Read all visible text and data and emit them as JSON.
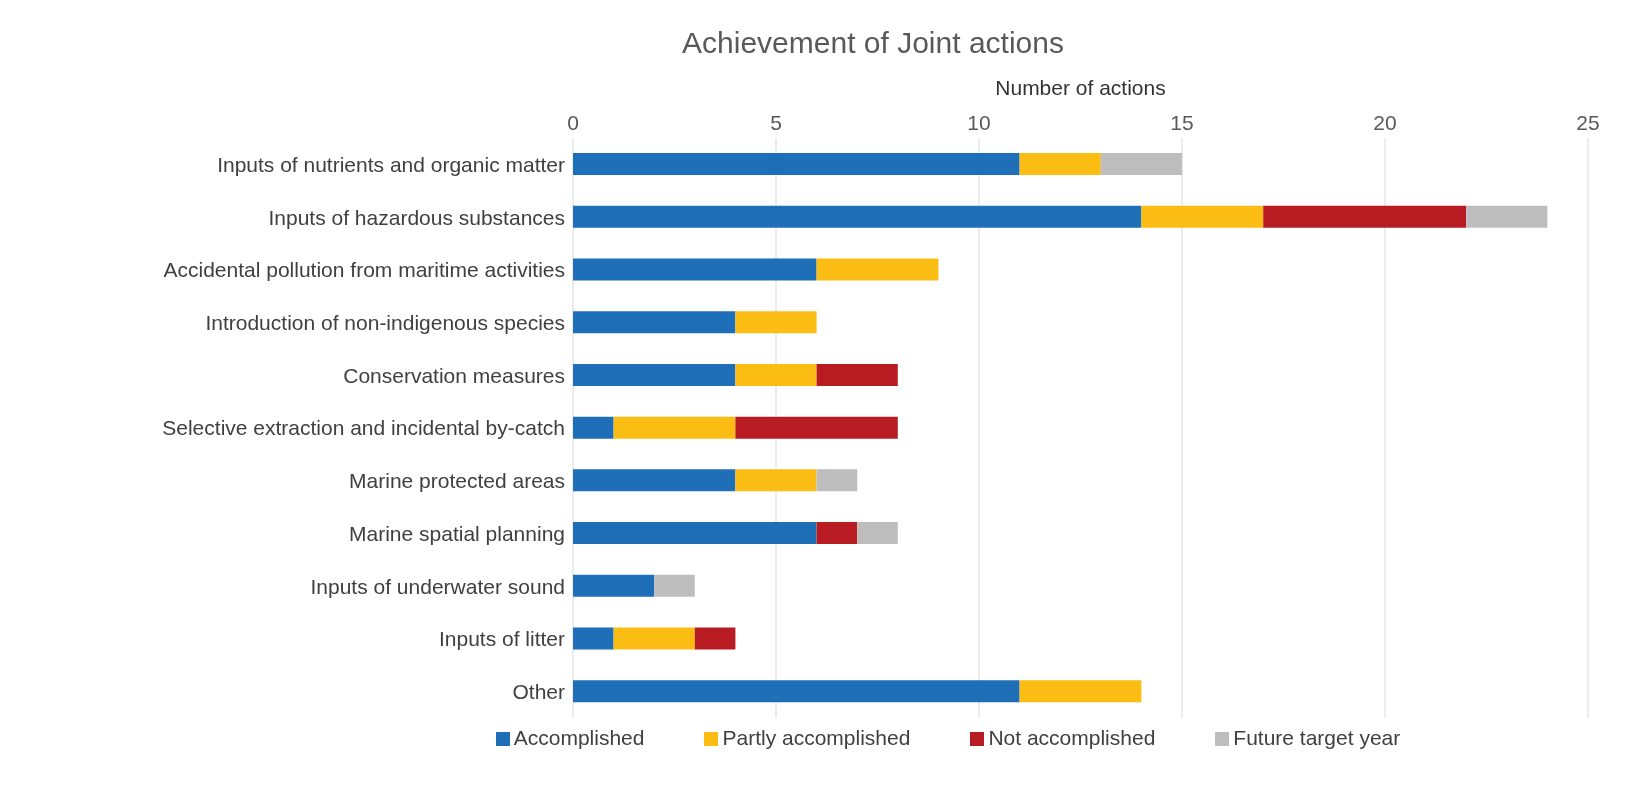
{
  "chart_data": {
    "type": "bar",
    "orientation": "horizontal",
    "stacked": true,
    "title": "Achievement of Joint actions",
    "xlabel": "Number of actions",
    "categories": [
      "Inputs of nutrients and organic matter",
      "Inputs of hazardous substances",
      "Accidental pollution from maritime activities",
      "Introduction of non-indigenous species",
      "Conservation measures",
      "Selective extraction and incidental by-catch",
      "Marine protected areas",
      "Marine spatial planning",
      "Inputs of underwater sound",
      "Inputs of litter",
      "Other"
    ],
    "series": [
      {
        "name": "Accomplished",
        "color": "#1f6fb8",
        "values": [
          11,
          14,
          6,
          4,
          4,
          1,
          4,
          6,
          2,
          1,
          11
        ]
      },
      {
        "name": "Partly accomplished",
        "color": "#fbbd13",
        "values": [
          2,
          3,
          3,
          2,
          2,
          3,
          2,
          0,
          0,
          2,
          3
        ]
      },
      {
        "name": "Not accomplished",
        "color": "#b81c22",
        "values": [
          0,
          5,
          0,
          0,
          2,
          4,
          0,
          1,
          0,
          1,
          0
        ]
      },
      {
        "name": "Future target year",
        "color": "#bdbdbd",
        "values": [
          2,
          2,
          0,
          0,
          0,
          0,
          1,
          1,
          1,
          0,
          0
        ]
      }
    ],
    "xlim": [
      0,
      25
    ],
    "xticks": [
      0,
      5,
      10,
      15,
      20,
      25
    ],
    "grid": "x",
    "legend": "bottom"
  }
}
